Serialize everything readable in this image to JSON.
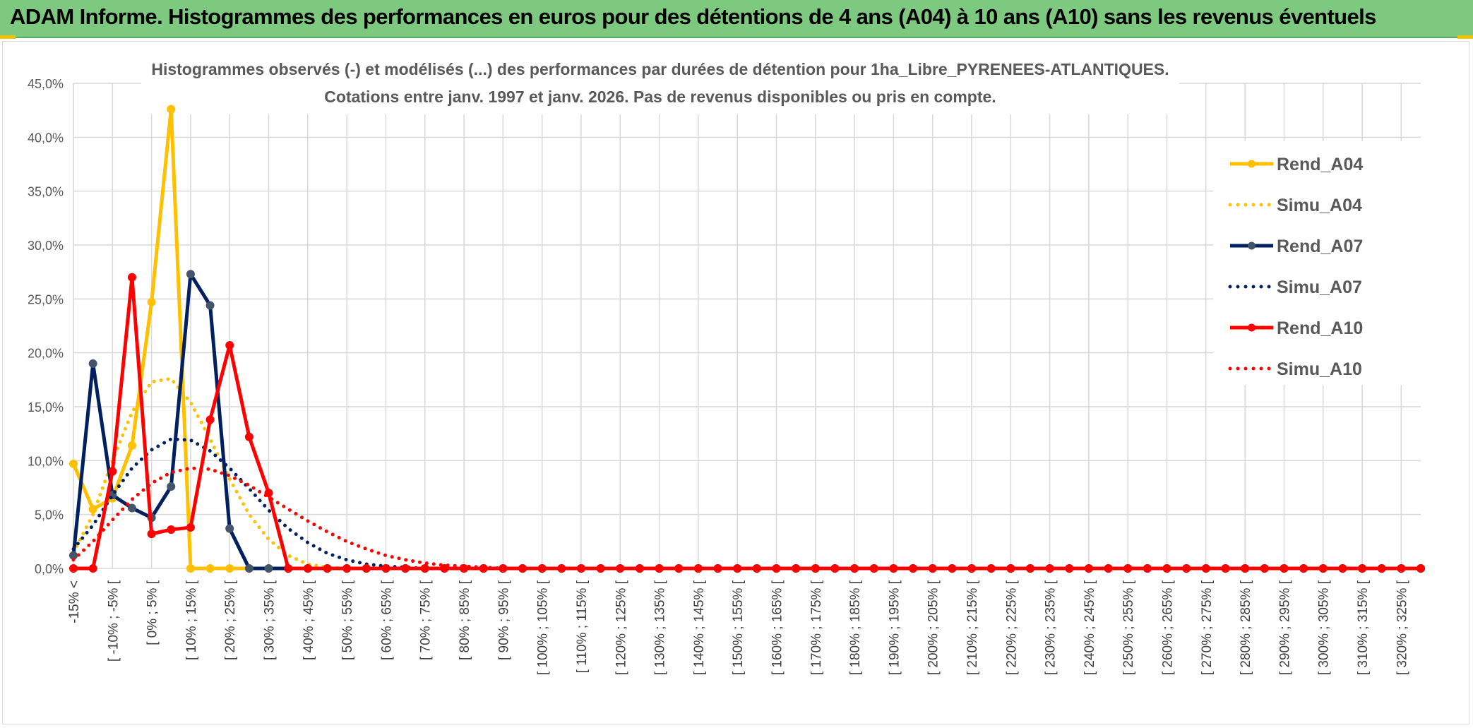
{
  "banner": {
    "title": "ADAM Informe. Histogrammes des performances en euros pour des détentions de 4 ans (A04) à 10 ans (A10) sans les revenus éventuels"
  },
  "colors": {
    "banner": "#7dc97f",
    "A04": "#ffc000",
    "A07": "#002060",
    "A10": "#ff0000",
    "grid": "#d9d9d9"
  },
  "chart_data": {
    "type": "line",
    "title": "Histogrammes observés (-) et modélisés (...) des performances par durées de détention pour 1ha_Libre_PYRENEES-ATLANTIQUES.",
    "subtitle": "Cotations entre janv. 1997 et janv. 2026. Pas de revenus disponibles ou pris en compte.",
    "x_tick_labels": [
      "-15% <",
      "[ -10% ; -5% [",
      "[ 0% ; 5% [",
      "[ 10% ; 15% [",
      "[ 20% ; 25% [",
      "[ 30% ; 35% [",
      "[ 40% ; 45% [",
      "[ 50% ; 55% [",
      "[ 60% ; 65% [",
      "[ 70% ; 75% [",
      "[ 80% ; 85% [",
      "[ 90% ; 95% [",
      "[ 100% ; 105% [",
      "[ 110% ; 115% [",
      "[ 120% ; 125% [",
      "[ 130% ; 135% [",
      "[ 140% ; 145% [",
      "[ 150% ; 155% [",
      "[ 160% ; 165% [",
      "[ 170% ; 175% [",
      "[ 180% ; 185% [",
      "[ 190% ; 195% [",
      "[ 200% ; 205% [",
      "[ 210% ; 215% [",
      "[ 220% ; 225% [",
      "[ 230% ; 235% [",
      "[ 240% ; 245% [",
      "[ 250% ; 255% [",
      "[ 260% ; 265% [",
      "[ 270% ; 275% [",
      "[ 280% ; 285% [",
      "[ 290% ; 295% [",
      "[ 300% ; 305% [",
      "[ 310% ; 315% [",
      "[ 320% ; 325% ["
    ],
    "y_ticks": [
      "0,0%",
      "5,0%",
      "10,0%",
      "15,0%",
      "20,0%",
      "25,0%",
      "30,0%",
      "35,0%",
      "40,0%",
      "45,0%"
    ],
    "ylim": [
      0,
      45
    ],
    "category_count": 70,
    "grid": true,
    "legend_position": "right",
    "series": [
      {
        "name": "Rend_A04",
        "style": "solid",
        "color": "#ffc000",
        "values": [
          9.7,
          5.5,
          6.5,
          11.4,
          24.7,
          42.6,
          0,
          0,
          0,
          0,
          0,
          0,
          0,
          0,
          0,
          0,
          0,
          0,
          0,
          0,
          0,
          0,
          0,
          0,
          0,
          0,
          0,
          0,
          0,
          0,
          0,
          0,
          0,
          0,
          0,
          0,
          0,
          0,
          0,
          0,
          0,
          0,
          0,
          0,
          0,
          0,
          0,
          0,
          0,
          0,
          0,
          0,
          0,
          0,
          0,
          0,
          0,
          0,
          0,
          0,
          0,
          0,
          0,
          0,
          0,
          0,
          0,
          0,
          0,
          0
        ]
      },
      {
        "name": "Simu_A04",
        "style": "dotted",
        "color": "#ffc000",
        "values": [
          1.5,
          5.0,
          10.0,
          14.5,
          17.3,
          17.6,
          15.4,
          12.0,
          8.3,
          5.0,
          2.7,
          1.2,
          0.4,
          0.1,
          0,
          0,
          0,
          0,
          0,
          0,
          0,
          0,
          0,
          0,
          0,
          0,
          0,
          0,
          0,
          0,
          0,
          0,
          0,
          0,
          0,
          0,
          0,
          0,
          0,
          0,
          0,
          0,
          0,
          0,
          0,
          0,
          0,
          0,
          0,
          0,
          0,
          0,
          0,
          0,
          0,
          0,
          0,
          0,
          0,
          0,
          0,
          0,
          0,
          0,
          0,
          0,
          0,
          0,
          0,
          0
        ]
      },
      {
        "name": "Rend_A07",
        "style": "solid",
        "color": "#002060",
        "values": [
          1.2,
          19.0,
          6.8,
          5.6,
          4.7,
          7.6,
          27.3,
          24.4,
          3.7,
          0,
          0,
          0,
          0,
          0,
          0,
          0,
          0,
          0,
          0,
          0,
          0,
          0,
          0,
          0,
          0,
          0,
          0,
          0,
          0,
          0,
          0,
          0,
          0,
          0,
          0,
          0,
          0,
          0,
          0,
          0,
          0,
          0,
          0,
          0,
          0,
          0,
          0,
          0,
          0,
          0,
          0,
          0,
          0,
          0,
          0,
          0,
          0,
          0,
          0,
          0,
          0,
          0,
          0,
          0,
          0,
          0,
          0,
          0,
          0,
          0
        ]
      },
      {
        "name": "Simu_A07",
        "style": "dotted",
        "color": "#002060",
        "values": [
          1.8,
          4.0,
          6.8,
          9.3,
          11.0,
          12.0,
          11.9,
          10.9,
          9.3,
          7.4,
          5.4,
          3.7,
          2.4,
          1.4,
          0.8,
          0.4,
          0.2,
          0.1,
          0,
          0,
          0,
          0,
          0,
          0,
          0,
          0,
          0,
          0,
          0,
          0,
          0,
          0,
          0,
          0,
          0,
          0,
          0,
          0,
          0,
          0,
          0,
          0,
          0,
          0,
          0,
          0,
          0,
          0,
          0,
          0,
          0,
          0,
          0,
          0,
          0,
          0,
          0,
          0,
          0,
          0,
          0,
          0,
          0,
          0,
          0,
          0,
          0,
          0,
          0,
          0
        ]
      },
      {
        "name": "Rend_A10",
        "style": "solid",
        "color": "#ff0000",
        "values": [
          0,
          0,
          9.0,
          27.0,
          3.2,
          3.6,
          3.8,
          13.8,
          20.7,
          12.2,
          7.0,
          0,
          0,
          0,
          0,
          0,
          0,
          0,
          0,
          0,
          0,
          0,
          0,
          0,
          0,
          0,
          0,
          0,
          0,
          0,
          0,
          0,
          0,
          0,
          0,
          0,
          0,
          0,
          0,
          0,
          0,
          0,
          0,
          0,
          0,
          0,
          0,
          0,
          0,
          0,
          0,
          0,
          0,
          0,
          0,
          0,
          0,
          0,
          0,
          0,
          0,
          0,
          0,
          0,
          0,
          0,
          0,
          0,
          0,
          0
        ]
      },
      {
        "name": "Simu_A10",
        "style": "dotted",
        "color": "#ff0000",
        "values": [
          0.8,
          2.5,
          4.5,
          6.4,
          7.9,
          8.9,
          9.3,
          9.2,
          8.6,
          7.7,
          6.6,
          5.5,
          4.4,
          3.4,
          2.5,
          1.8,
          1.2,
          0.8,
          0.5,
          0.3,
          0.2,
          0.1,
          0,
          0,
          0,
          0,
          0,
          0,
          0,
          0,
          0,
          0,
          0,
          0,
          0,
          0,
          0,
          0,
          0,
          0,
          0,
          0,
          0,
          0,
          0,
          0,
          0,
          0,
          0,
          0,
          0,
          0,
          0,
          0,
          0,
          0,
          0,
          0,
          0,
          0,
          0,
          0,
          0,
          0,
          0,
          0,
          0,
          0,
          0,
          0
        ]
      }
    ]
  }
}
